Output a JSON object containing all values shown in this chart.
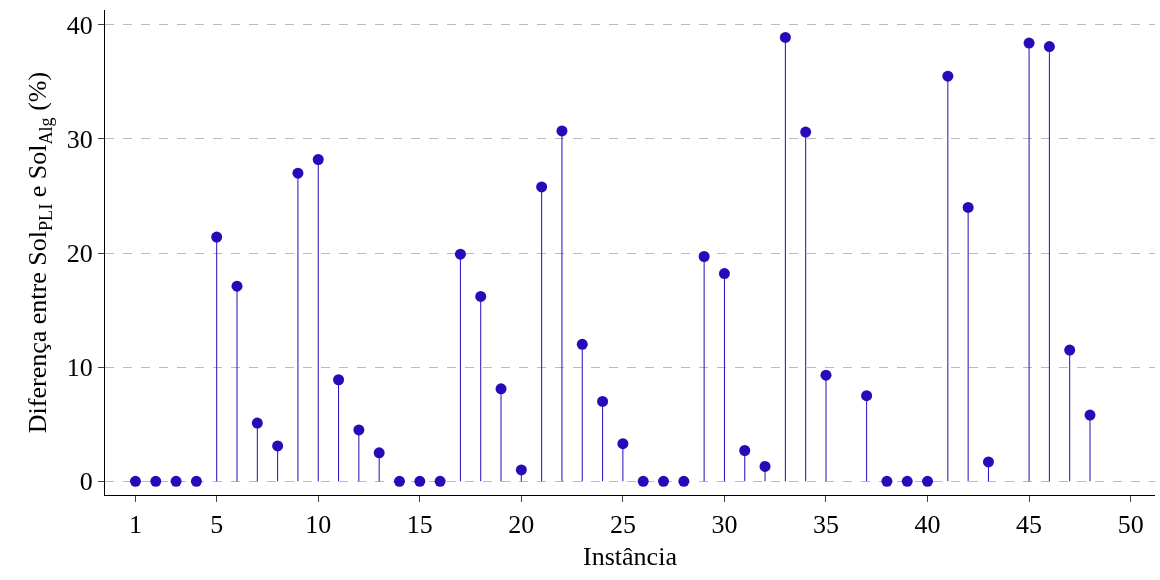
{
  "chart_data": {
    "type": "lollipop",
    "xlabel": "Instância",
    "ylabel": "Diferença entre Sol$_{PLI}$ e Sol$_{Alg}$ (%)",
    "x": [
      1,
      2,
      3,
      4,
      5,
      6,
      7,
      8,
      9,
      10,
      11,
      12,
      13,
      14,
      15,
      16,
      17,
      18,
      19,
      20,
      21,
      22,
      23,
      24,
      25,
      26,
      27,
      28,
      29,
      30,
      31,
      32,
      33,
      34,
      35,
      36,
      37,
      38,
      39,
      40,
      41,
      42,
      43,
      44,
      45,
      46,
      47,
      48
    ],
    "series": [
      {
        "color": "#2a0ab8",
        "values": [
          0,
          0,
          0,
          0,
          21.4,
          17.1,
          5.1,
          3.1,
          27.0,
          28.2,
          8.9,
          4.5,
          2.5,
          0,
          0,
          0,
          19.9,
          16.2,
          8.1,
          1.0,
          25.8,
          30.7,
          12.0,
          7.0,
          3.3,
          0,
          0,
          0,
          19.7,
          18.2,
          2.7,
          1.3,
          38.9,
          30.6,
          9.3,
          null,
          7.5,
          0,
          0,
          0,
          35.5,
          24.0,
          1.7,
          null,
          38.4,
          38.1,
          11.5,
          5.8
        ]
      }
    ],
    "xlim": [
      -0.5,
      51.2
    ],
    "xticks": [
      1,
      5,
      10,
      15,
      20,
      25,
      30,
      35,
      40,
      45,
      50
    ],
    "ylim": [
      -1.2,
      41.3
    ],
    "yticks": [
      0,
      10,
      20,
      30,
      40
    ],
    "grid": "y",
    "marker": "circle"
  }
}
